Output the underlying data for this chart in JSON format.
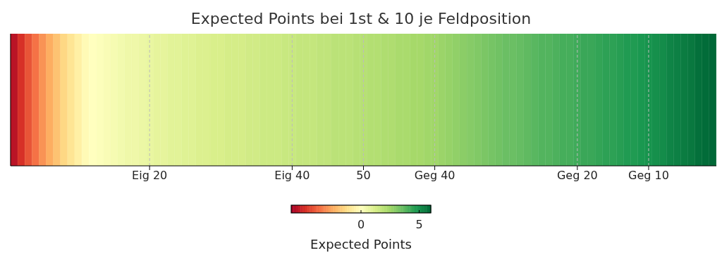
{
  "chart_data": {
    "type": "heatmap",
    "title": "Expected Points bei 1st & 10 je Feldposition",
    "clabel": "Expected Points",
    "categories": [
      null,
      null,
      null,
      null,
      null,
      null,
      null,
      null,
      null,
      null,
      null,
      null,
      null,
      null,
      null,
      null,
      null,
      null,
      null,
      "Eig 20",
      null,
      null,
      null,
      null,
      null,
      null,
      null,
      null,
      null,
      null,
      null,
      null,
      null,
      null,
      null,
      null,
      null,
      null,
      null,
      "Eig 40",
      null,
      null,
      null,
      null,
      null,
      null,
      null,
      null,
      null,
      "50",
      null,
      null,
      null,
      null,
      null,
      null,
      null,
      null,
      null,
      "Geg 40",
      null,
      null,
      null,
      null,
      null,
      null,
      null,
      null,
      null,
      null,
      null,
      null,
      null,
      null,
      null,
      null,
      null,
      null,
      null,
      "Geg 20",
      null,
      null,
      null,
      null,
      null,
      null,
      null,
      null,
      null,
      "Geg 10",
      null,
      null,
      null,
      null,
      null,
      null,
      null,
      null,
      null
    ],
    "cells": [
      [
        -5.5,
        -4.8,
        -4.1,
        -3.5,
        -2.9,
        -2.4,
        -1.9,
        -1.4,
        -1.0,
        -0.6,
        -0.2,
        0.0,
        0.1,
        0.2,
        0.3,
        0.4,
        0.5,
        0.5,
        0.6,
        0.7,
        0.8,
        0.8,
        0.9,
        0.9,
        1.0,
        1.0,
        1.1,
        1.1,
        1.2,
        1.2,
        1.3,
        1.3,
        1.3,
        1.4,
        1.4,
        1.5,
        1.5,
        1.5,
        1.6,
        1.6,
        1.7,
        1.7,
        1.7,
        1.8,
        1.8,
        1.9,
        1.9,
        1.9,
        2.0,
        2.0,
        2.1,
        2.1,
        2.2,
        2.2,
        2.3,
        2.3,
        2.4,
        2.4,
        2.5,
        2.5,
        2.6,
        2.7,
        2.8,
        2.9,
        3.0,
        3.1,
        3.2,
        3.3,
        3.4,
        3.5,
        3.5,
        3.6,
        3.7,
        3.8,
        3.9,
        3.9,
        4.0,
        4.1,
        4.1,
        4.2,
        4.3,
        4.3,
        4.4,
        4.5,
        4.5,
        4.6,
        4.7,
        4.7,
        4.8,
        4.9,
        5.0,
        5.1,
        5.3,
        5.4,
        5.5,
        5.6,
        5.8,
        5.9,
        6.0
      ]
    ],
    "y_categories": [
      null
    ],
    "clim": [
      -6,
      6
    ],
    "cticks": [
      0,
      5
    ],
    "grid": "x"
  }
}
